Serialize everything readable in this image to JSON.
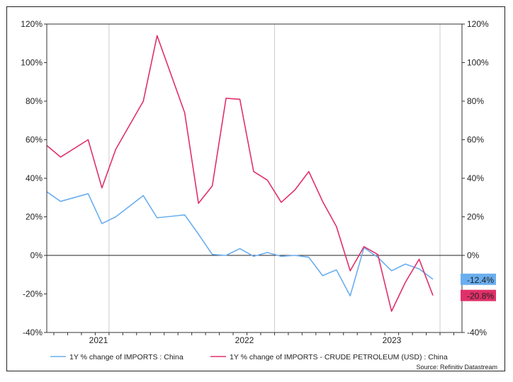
{
  "chart_data": {
    "type": "line",
    "x_dates": [
      "2020-09",
      "2020-10",
      "2020-12",
      "2021-01",
      "2021-02",
      "2021-03",
      "2021-04",
      "2021-05",
      "2021-06",
      "2021-07",
      "2021-08",
      "2021-09",
      "2021-10",
      "2021-11",
      "2021-12",
      "2022-01",
      "2022-02",
      "2022-03",
      "2022-04",
      "2022-05",
      "2022-06",
      "2022-07",
      "2022-08",
      "2022-09",
      "2022-10",
      "2022-11",
      "2022-12",
      "2023-01",
      "2023-02",
      "2023-03",
      "2023-04"
    ],
    "series": [
      {
        "name": "1Y % change of IMPORTS : China",
        "color": "#6aaeef",
        "end_label": "-12.4%",
        "points": [
          [
            "2020-09",
            33
          ],
          [
            "2020-10",
            28
          ],
          [
            "2020-12",
            32
          ],
          [
            "2021-01",
            16.5
          ],
          [
            "2021-02",
            20
          ],
          [
            "2021-04",
            31
          ],
          [
            "2021-05",
            19.5
          ],
          [
            "2021-07",
            21
          ],
          [
            "2021-08",
            11
          ],
          [
            "2021-09",
            0.5
          ],
          [
            "2021-10",
            0
          ],
          [
            "2021-11",
            3.5
          ],
          [
            "2021-12",
            -0.5
          ],
          [
            "2022-01",
            1.5
          ],
          [
            "2022-02",
            -0.5
          ],
          [
            "2022-03",
            0
          ],
          [
            "2022-04",
            -1
          ],
          [
            "2022-05",
            -10.5
          ],
          [
            "2022-06",
            -7.5
          ],
          [
            "2022-07",
            -21
          ],
          [
            "2022-08",
            4
          ],
          [
            "2022-09",
            -1
          ],
          [
            "2022-10",
            -8
          ],
          [
            "2022-11",
            -4.5
          ],
          [
            "2022-12",
            -7
          ],
          [
            "2023-01",
            -12.4
          ]
        ]
      },
      {
        "name": "1Y % change of IMPORTS - CRUDE PETROLEUM (USD) : China",
        "color": "#e0306a",
        "end_label": "-20.8%",
        "points": [
          [
            "2020-09",
            57
          ],
          [
            "2020-10",
            51
          ],
          [
            "2020-12",
            60
          ],
          [
            "2021-01",
            35
          ],
          [
            "2021-02",
            55
          ],
          [
            "2021-04",
            80
          ],
          [
            "2021-05",
            114
          ],
          [
            "2021-07",
            74
          ],
          [
            "2021-08",
            27
          ],
          [
            "2021-09",
            36
          ],
          [
            "2021-10",
            81.5
          ],
          [
            "2021-11",
            81
          ],
          [
            "2021-12",
            43.5
          ],
          [
            "2022-01",
            39
          ],
          [
            "2022-02",
            27.5
          ],
          [
            "2022-03",
            34
          ],
          [
            "2022-04",
            43.5
          ],
          [
            "2022-05",
            28
          ],
          [
            "2022-06",
            15
          ],
          [
            "2022-07",
            -8
          ],
          [
            "2022-08",
            4.5
          ],
          [
            "2022-09",
            0.5
          ],
          [
            "2022-10",
            -29
          ],
          [
            "2022-11",
            -14
          ],
          [
            "2022-12",
            -2
          ],
          [
            "2023-01",
            -20.8
          ]
        ]
      }
    ],
    "y_ticks": [
      "-40%",
      "-20%",
      "0%",
      "20%",
      "40%",
      "60%",
      "80%",
      "100%",
      "120%"
    ],
    "ylim": [
      -40,
      120
    ],
    "year_labels": [
      "2021",
      "2022",
      "2023"
    ],
    "source": "Source: Refinitiv Datastream",
    "legend_position": "bottom"
  }
}
